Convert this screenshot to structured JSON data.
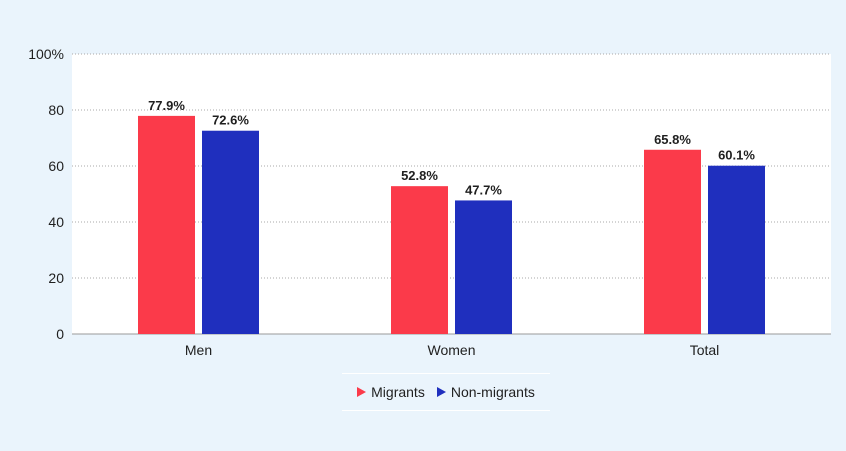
{
  "chart_data": {
    "type": "bar",
    "categories": [
      "Men",
      "Women",
      "Total"
    ],
    "series": [
      {
        "name": "Migrants",
        "values": [
          77.9,
          52.8,
          65.8
        ],
        "labels": [
          "77.9%",
          "52.8%",
          "65.8%"
        ],
        "color": "#fb3a4a"
      },
      {
        "name": "Non-migrants",
        "values": [
          72.6,
          47.7,
          60.1
        ],
        "labels": [
          "72.6%",
          "47.7%",
          "60.1%"
        ],
        "color": "#1f2fbe"
      }
    ],
    "ylim": [
      0,
      100
    ],
    "yticks": [
      0,
      20,
      40,
      60,
      80,
      100
    ],
    "ytick_labels": [
      "0",
      "20",
      "40",
      "60",
      "80",
      "100%"
    ],
    "grid": true,
    "legend_position": "bottom-center",
    "plot_background": "#ffffff",
    "page_background": "#eaf4fc"
  }
}
